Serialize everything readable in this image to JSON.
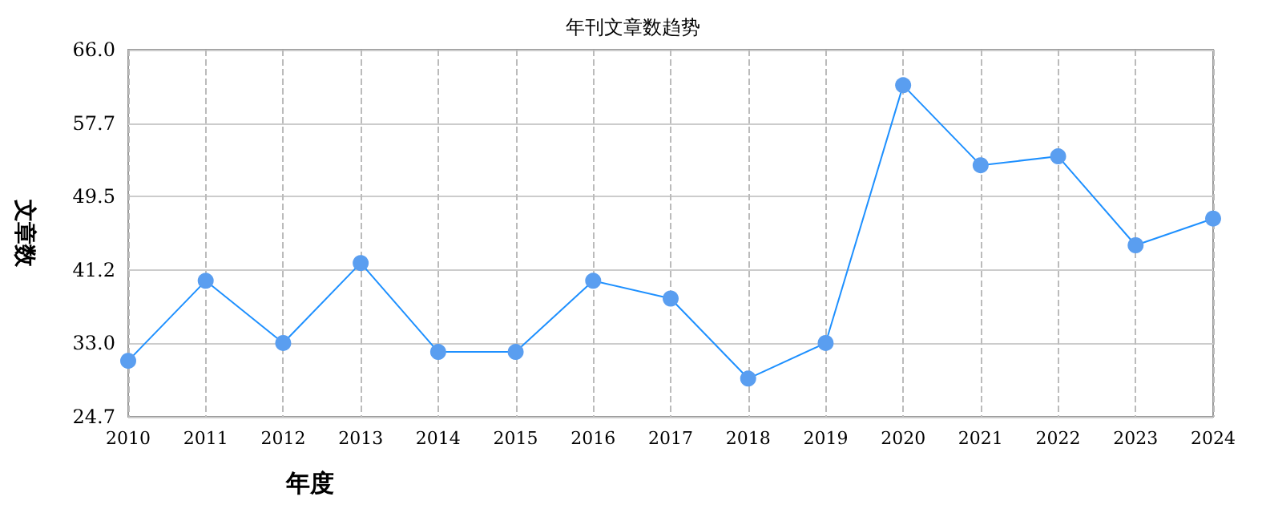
{
  "chart_data": {
    "type": "line",
    "title": "年刊文章数趋势",
    "xlabel": "年度",
    "ylabel": "文章数",
    "categories": [
      "2010",
      "2011",
      "2012",
      "2013",
      "2014",
      "2015",
      "2016",
      "2017",
      "2018",
      "2019",
      "2020",
      "2021",
      "2022",
      "2023",
      "2024"
    ],
    "series": [
      {
        "color": "#1e90ff",
        "values": [
          31,
          40,
          33,
          42,
          32,
          32,
          40,
          38,
          29,
          33,
          62,
          53,
          54,
          44,
          47
        ]
      }
    ],
    "ylim": [
      24.7,
      66.0
    ],
    "yticks": [
      {
        "value": 24.7,
        "label": "24.7"
      },
      {
        "value": 33.0,
        "label": "33.0"
      },
      {
        "value": 41.2,
        "label": "41.2"
      },
      {
        "value": 49.5,
        "label": "49.5"
      },
      {
        "value": 57.7,
        "label": "57.7"
      },
      {
        "value": 66.0,
        "label": "66.0"
      }
    ],
    "grid": true,
    "marker": "circle",
    "line_style": "solid"
  }
}
